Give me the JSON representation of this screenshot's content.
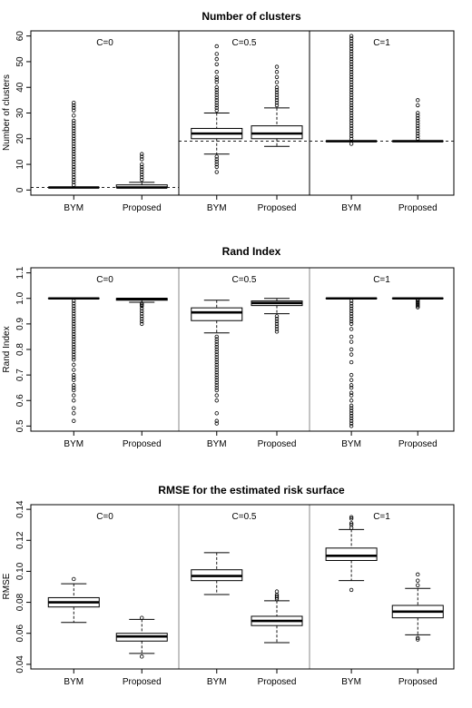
{
  "chart_data": [
    {
      "type": "boxplot",
      "title": "Number of clusters",
      "ylabel": "Number of clusters",
      "ylim": [
        -2,
        62
      ],
      "yticks": [
        0,
        10,
        20,
        30,
        40,
        50,
        60
      ],
      "panel_border_color": "#000000",
      "categories": [
        "BYM",
        "Proposed"
      ],
      "panels": [
        {
          "label": "C=0",
          "reference_line": 1,
          "boxes": [
            {
              "name": "BYM",
              "whisker_low": 1,
              "q1": 1,
              "median": 1,
              "q3": 1,
              "whisker_high": 1,
              "outliers": [
                2,
                3,
                4,
                5,
                6,
                7,
                8,
                9,
                10,
                11,
                12,
                13,
                14,
                15,
                16,
                17,
                18,
                19,
                20,
                21,
                22,
                23,
                24,
                25,
                26,
                27,
                29,
                31,
                32,
                33,
                34
              ]
            },
            {
              "name": "Proposed",
              "whisker_low": 1,
              "q1": 1,
              "median": 1,
              "q3": 2,
              "whisker_high": 3,
              "outliers": [
                4,
                5,
                6,
                7,
                8,
                9,
                10,
                12,
                13,
                14
              ]
            }
          ]
        },
        {
          "label": "C=0.5",
          "reference_line": 19,
          "boxes": [
            {
              "name": "BYM",
              "whisker_low": 14,
              "q1": 20,
              "median": 22,
              "q3": 24,
              "whisker_high": 30,
              "outliers": [
                7,
                9,
                10,
                11,
                12,
                13,
                31,
                32,
                33,
                34,
                35,
                36,
                37,
                38,
                39,
                40,
                42,
                43,
                44,
                46,
                49,
                51,
                53,
                56
              ]
            },
            {
              "name": "Proposed",
              "whisker_low": 17,
              "q1": 20,
              "median": 22,
              "q3": 25,
              "whisker_high": 32,
              "outliers": [
                33,
                34,
                35,
                36,
                37,
                38,
                39,
                40,
                42,
                44,
                46,
                48
              ]
            }
          ]
        },
        {
          "label": "C=1",
          "reference_line": 19,
          "boxes": [
            {
              "name": "BYM",
              "whisker_low": 19,
              "q1": 19,
              "median": 19,
              "q3": 19,
              "whisker_high": 19,
              "outliers": [
                18,
                20,
                21,
                22,
                23,
                24,
                25,
                26,
                27,
                28,
                29,
                30,
                31,
                32,
                33,
                34,
                35,
                36,
                37,
                38,
                39,
                40,
                41,
                42,
                43,
                44,
                45,
                46,
                47,
                48,
                49,
                50,
                51,
                52,
                53,
                54,
                55,
                56,
                57,
                58,
                59,
                60
              ]
            },
            {
              "name": "Proposed",
              "whisker_low": 19,
              "q1": 19,
              "median": 19,
              "q3": 19,
              "whisker_high": 19,
              "outliers": [
                20,
                21,
                22,
                23,
                24,
                25,
                26,
                27,
                28,
                29,
                30,
                33,
                35
              ]
            }
          ]
        }
      ]
    },
    {
      "type": "boxplot",
      "title": "Rand Index",
      "ylabel": "Rand Index",
      "ylim": [
        0.48,
        1.12
      ],
      "yticks": [
        "0.5",
        "0.6",
        "0.7",
        "0.8",
        "0.9",
        "1.0",
        "1.1"
      ],
      "panel_border_color": "#888888",
      "categories": [
        "BYM",
        "Proposed"
      ],
      "panels": [
        {
          "label": "C=0",
          "boxes": [
            {
              "name": "BYM",
              "whisker_low": 1.0,
              "q1": 1.0,
              "median": 1.0,
              "q3": 1.0,
              "whisker_high": 1.0,
              "outliers": [
                0.52,
                0.55,
                0.57,
                0.6,
                0.62,
                0.64,
                0.65,
                0.66,
                0.68,
                0.69,
                0.7,
                0.72,
                0.74,
                0.76,
                0.77,
                0.78,
                0.79,
                0.8,
                0.81,
                0.82,
                0.83,
                0.84,
                0.85,
                0.86,
                0.87,
                0.88,
                0.89,
                0.9,
                0.91,
                0.92,
                0.93,
                0.94,
                0.95,
                0.96,
                0.97,
                0.98,
                0.99
              ]
            },
            {
              "name": "Proposed",
              "whisker_low": 0.985,
              "q1": 0.993,
              "median": 0.998,
              "q3": 1.0,
              "whisker_high": 1.0,
              "outliers": [
                0.9,
                0.91,
                0.92,
                0.93,
                0.94,
                0.95,
                0.96,
                0.97,
                0.975,
                0.98
              ]
            }
          ]
        },
        {
          "label": "C=0.5",
          "boxes": [
            {
              "name": "BYM",
              "whisker_low": 0.865,
              "q1": 0.913,
              "median": 0.945,
              "q3": 0.963,
              "whisker_high": 0.993,
              "outliers": [
                0.51,
                0.52,
                0.55,
                0.6,
                0.62,
                0.64,
                0.65,
                0.66,
                0.67,
                0.68,
                0.69,
                0.7,
                0.71,
                0.72,
                0.73,
                0.74,
                0.75,
                0.76,
                0.77,
                0.78,
                0.79,
                0.8,
                0.81,
                0.82,
                0.83,
                0.84,
                0.85
              ]
            },
            {
              "name": "Proposed",
              "whisker_low": 0.94,
              "q1": 0.972,
              "median": 0.982,
              "q3": 0.99,
              "whisker_high": 1.0,
              "outliers": [
                0.87,
                0.88,
                0.89,
                0.9,
                0.91,
                0.92,
                0.93
              ]
            }
          ]
        },
        {
          "label": "C=1",
          "boxes": [
            {
              "name": "BYM",
              "whisker_low": 1.0,
              "q1": 1.0,
              "median": 1.0,
              "q3": 1.0,
              "whisker_high": 1.0,
              "outliers": [
                0.5,
                0.51,
                0.52,
                0.53,
                0.54,
                0.55,
                0.56,
                0.57,
                0.58,
                0.6,
                0.62,
                0.63,
                0.65,
                0.66,
                0.68,
                0.7,
                0.75,
                0.78,
                0.8,
                0.83,
                0.85,
                0.88,
                0.9,
                0.91,
                0.92,
                0.93,
                0.94,
                0.95,
                0.96,
                0.97,
                0.98,
                0.99
              ]
            },
            {
              "name": "Proposed",
              "whisker_low": 1.0,
              "q1": 1.0,
              "median": 1.0,
              "q3": 1.0,
              "whisker_high": 1.0,
              "outliers": [
                0.965,
                0.97,
                0.975,
                0.98,
                0.985,
                0.99,
                0.995
              ]
            }
          ]
        }
      ]
    },
    {
      "type": "boxplot",
      "title": "RMSE for the estimated risk surface",
      "ylabel": "RMSE",
      "ylim": [
        0.037,
        0.143
      ],
      "yticks": [
        "0.04",
        "0.06",
        "0.08",
        "0.10",
        "0.12",
        "0.14"
      ],
      "panel_border_color": "#888888",
      "categories": [
        "BYM",
        "Proposed"
      ],
      "panels": [
        {
          "label": "C=0",
          "boxes": [
            {
              "name": "BYM",
              "whisker_low": 0.067,
              "q1": 0.077,
              "median": 0.08,
              "q3": 0.083,
              "whisker_high": 0.092,
              "outliers": [
                0.095
              ]
            },
            {
              "name": "Proposed",
              "whisker_low": 0.047,
              "q1": 0.055,
              "median": 0.058,
              "q3": 0.06,
              "whisker_high": 0.069,
              "outliers": [
                0.045,
                0.07
              ]
            }
          ]
        },
        {
          "label": "C=0.5",
          "boxes": [
            {
              "name": "BYM",
              "whisker_low": 0.085,
              "q1": 0.094,
              "median": 0.097,
              "q3": 0.101,
              "whisker_high": 0.112,
              "outliers": []
            },
            {
              "name": "Proposed",
              "whisker_low": 0.054,
              "q1": 0.065,
              "median": 0.068,
              "q3": 0.071,
              "whisker_high": 0.081,
              "outliers": [
                0.082,
                0.083,
                0.084,
                0.085,
                0.087
              ]
            }
          ]
        },
        {
          "label": "C=1",
          "boxes": [
            {
              "name": "BYM",
              "whisker_low": 0.094,
              "q1": 0.107,
              "median": 0.11,
              "q3": 0.115,
              "whisker_high": 0.127,
              "outliers": [
                0.088,
                0.128,
                0.13,
                0.131,
                0.134,
                0.135
              ]
            },
            {
              "name": "Proposed",
              "whisker_low": 0.059,
              "q1": 0.07,
              "median": 0.074,
              "q3": 0.078,
              "whisker_high": 0.089,
              "outliers": [
                0.056,
                0.057,
                0.091,
                0.094,
                0.098
              ]
            }
          ]
        }
      ]
    }
  ]
}
